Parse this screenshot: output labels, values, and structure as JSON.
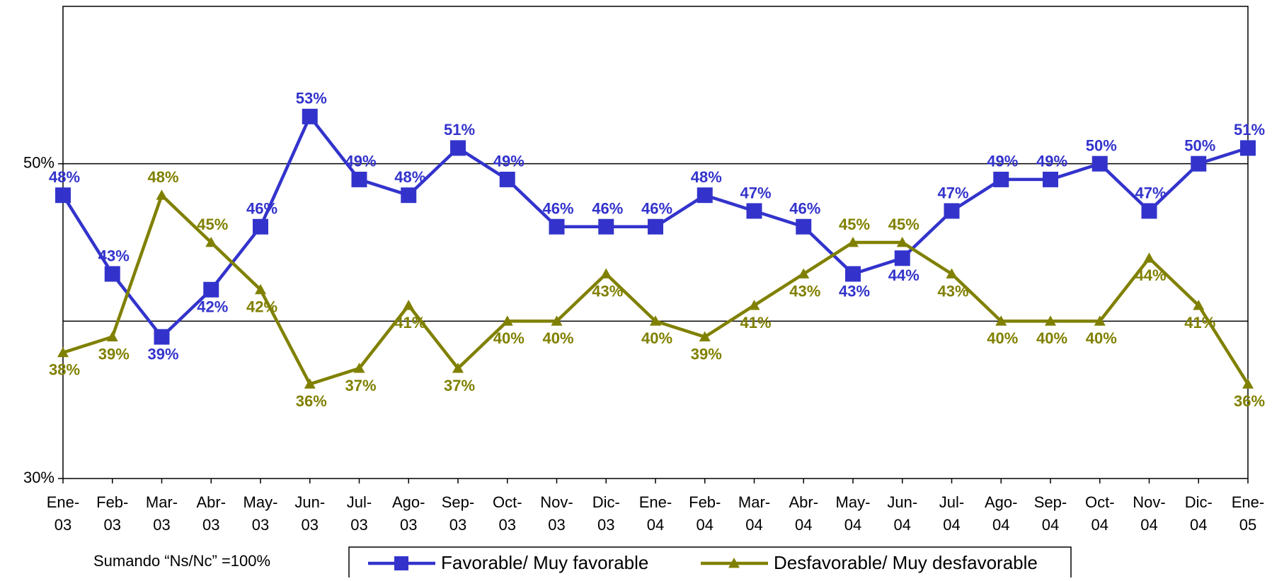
{
  "chart_data": {
    "type": "line",
    "categories": [
      "Ene-03",
      "Feb-03",
      "Mar-03",
      "Abr-03",
      "May-03",
      "Jun-03",
      "Jul-03",
      "Ago-03",
      "Sep-03",
      "Oct-03",
      "Nov-03",
      "Dic-03",
      "Ene-04",
      "Feb-04",
      "Mar-04",
      "Abr-04",
      "May-04",
      "Jun-04",
      "Jul-04",
      "Ago-04",
      "Sep-04",
      "Oct-04",
      "Nov-04",
      "Dic-04",
      "Ene-05"
    ],
    "series": [
      {
        "name": "Favorable/ Muy favorable",
        "color": "#3333cc",
        "marker": "square",
        "values": [
          48,
          43,
          39,
          42,
          46,
          53,
          49,
          48,
          51,
          49,
          46,
          46,
          46,
          48,
          47,
          46,
          43,
          44,
          47,
          49,
          49,
          50,
          47,
          50,
          51
        ],
        "value_labels": [
          "48%",
          "43%",
          "39%",
          "42%",
          "46%",
          "53%",
          "49%",
          "48%",
          "51%",
          "49%",
          "46%",
          "46%",
          "46%",
          "48%",
          "47%",
          "46%",
          "43%",
          "44%",
          "47%",
          "49%",
          "49%",
          "50%",
          "47%",
          "50%",
          "51%"
        ]
      },
      {
        "name": "Desfavorable/ Muy desfavorable",
        "color": "#808000",
        "marker": "triangle",
        "values": [
          38,
          39,
          48,
          45,
          42,
          36,
          37,
          41,
          37,
          40,
          40,
          43,
          40,
          39,
          41,
          43,
          45,
          45,
          43,
          40,
          40,
          40,
          44,
          41,
          36
        ],
        "value_labels": [
          "38%",
          "39%",
          "48%",
          "45%",
          "42%",
          "36%",
          "37%",
          "41%",
          "37%",
          "40%",
          "40%",
          "43%",
          "40%",
          "39%",
          "41%",
          "43%",
          "45%",
          "45%",
          "43%",
          "40%",
          "40%",
          "40%",
          "44%",
          "41%",
          "36%"
        ]
      }
    ],
    "ylim": [
      30,
      60
    ],
    "yticks": [
      {
        "value": 30,
        "label": "30%"
      },
      {
        "value": 50,
        "label": "50%"
      }
    ],
    "gridlines": [
      40,
      50
    ],
    "note": "Sumando “Ns/Nc” =100%",
    "legend": "bottom"
  }
}
